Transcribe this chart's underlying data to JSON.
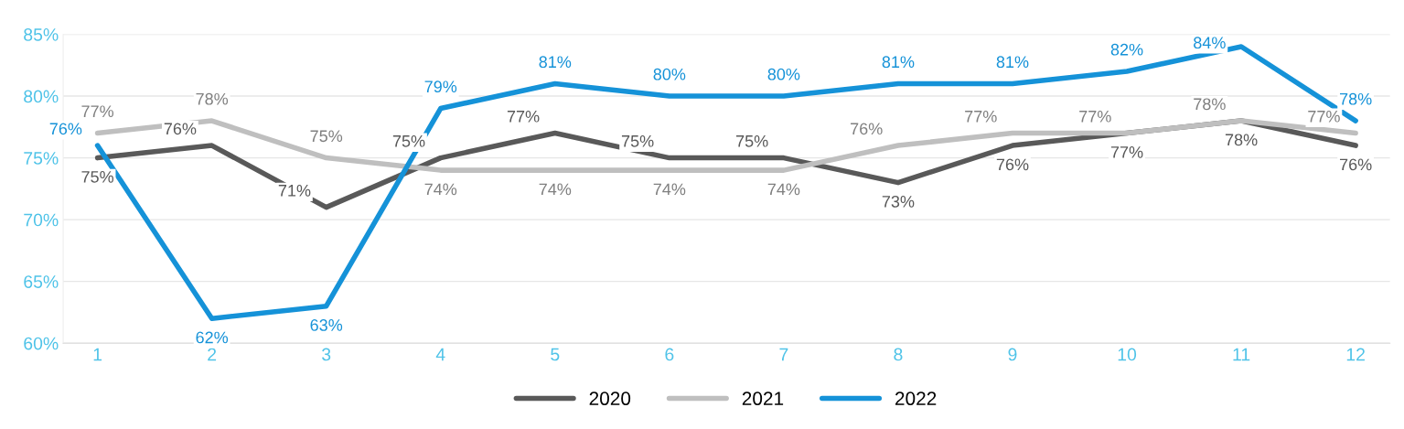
{
  "chart_data": {
    "type": "line",
    "categories": [
      "1",
      "2",
      "3",
      "4",
      "5",
      "6",
      "7",
      "8",
      "9",
      "10",
      "11",
      "12"
    ],
    "series": [
      {
        "name": "2020",
        "color": "#595959",
        "values": [
          75,
          76,
          71,
          75,
          77,
          75,
          75,
          73,
          76,
          77,
          78,
          76
        ],
        "value_labels": [
          "75%",
          "76%",
          "71%",
          "75%",
          "77%",
          "75%",
          "75%",
          "73%",
          "76%",
          "77%",
          "78%",
          "76%"
        ]
      },
      {
        "name": "2021",
        "color": "#bfbfbf",
        "values": [
          77,
          78,
          75,
          74,
          74,
          74,
          74,
          76,
          77,
          77,
          78,
          77
        ],
        "value_labels": [
          "77%",
          "78%",
          "75%",
          "74%",
          "74%",
          "74%",
          "74%",
          "76%",
          "77%",
          "77%",
          "78%",
          "77%"
        ]
      },
      {
        "name": "2022",
        "color": "#1592d8",
        "values": [
          76,
          62,
          63,
          79,
          81,
          80,
          80,
          81,
          81,
          82,
          84,
          78
        ],
        "value_labels": [
          "76%",
          "62%",
          "63%",
          "79%",
          "81%",
          "80%",
          "80%",
          "81%",
          "81%",
          "82%",
          "84%",
          "78%"
        ]
      }
    ],
    "ylim": [
      60,
      85
    ],
    "yticks": [
      {
        "value": 60,
        "label": "60%"
      },
      {
        "value": 65,
        "label": "65%"
      },
      {
        "value": 70,
        "label": "70%"
      },
      {
        "value": 75,
        "label": "75%"
      },
      {
        "value": 80,
        "label": "80%"
      },
      {
        "value": 85,
        "label": "85%"
      }
    ],
    "grid": "y",
    "legend": "bottom",
    "marker": "none",
    "line_style": "solid"
  }
}
